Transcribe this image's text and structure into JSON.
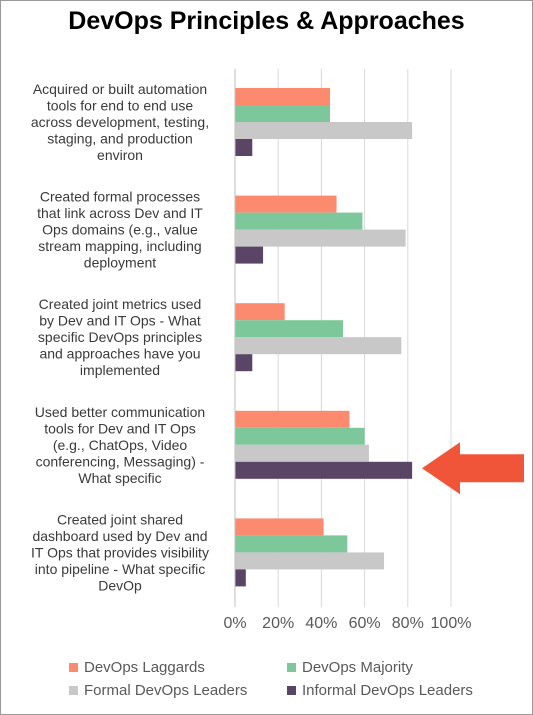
{
  "chart_data": {
    "type": "bar",
    "orientation": "horizontal",
    "title": "DevOps Principles & Approaches",
    "categories": [
      "Acquired or built automation tools for end to end use across development, testing, staging, and production environ",
      "Created formal processes that link across Dev and IT Ops domains (e.g., value stream mapping, including deployment",
      "Created joint metrics used by Dev and IT Ops - What specific DevOps principles and approaches have you implemented",
      "Used better communication tools for Dev and IT Ops (e.g., ChatOps, Video conferencing, Messaging) - What specific",
      "Created joint shared dashboard used by Dev and IT Ops that provides visibility into pipeline - What specific DevOp"
    ],
    "category_lines": [
      [
        "Acquired or built automation",
        "tools for end to end use",
        "across development, testing,",
        "staging, and production",
        "environ"
      ],
      [
        "Created formal processes",
        "that link across Dev and IT",
        "Ops domains (e.g., value",
        "stream mapping, including",
        "deployment"
      ],
      [
        "Created joint metrics used",
        "by Dev and IT Ops - What",
        "specific DevOps principles",
        "and approaches have you",
        "implemented"
      ],
      [
        "Used better communication",
        "tools for Dev and IT Ops",
        "(e.g., ChatOps, Video",
        "conferencing, Messaging) -",
        "What specific"
      ],
      [
        "Created joint shared",
        "dashboard used by Dev and",
        "IT Ops that provides visibility",
        "into pipeline - What specific",
        "DevOp"
      ]
    ],
    "series": [
      {
        "name": "DevOps Laggards",
        "color": "#fb8a6f",
        "values": [
          44,
          47,
          23,
          53,
          41
        ]
      },
      {
        "name": "DevOps Majority",
        "color": "#7dc89a",
        "values": [
          44,
          59,
          50,
          60,
          52
        ]
      },
      {
        "name": "Formal DevOps Leaders",
        "color": "#c8c8c8",
        "values": [
          82,
          79,
          77,
          62,
          69
        ]
      },
      {
        "name": "Informal DevOps Leaders",
        "color": "#5a4566",
        "values": [
          8,
          13,
          8,
          82,
          5
        ]
      }
    ],
    "xlim": [
      0,
      100
    ],
    "x_ticks": [
      0,
      20,
      40,
      60,
      80,
      100
    ],
    "x_tick_labels": [
      "0%",
      "20%",
      "40%",
      "60%",
      "80%",
      "100%"
    ],
    "grid": "vertical",
    "legend_position": "bottom",
    "annotation": {
      "type": "arrow",
      "color": "#f0553a",
      "points_to_category_index": 3
    }
  }
}
